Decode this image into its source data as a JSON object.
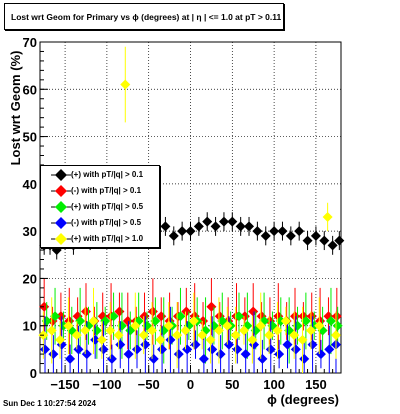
{
  "chart_data": {
    "type": "scatter",
    "title": "Lost wrt Geom for Primary vs ϕ (degrees) at | η | <= 1.0 at pT > 0.11",
    "xlabel": "ϕ (degrees)",
    "ylabel": "Lost wrt Geom (%)",
    "xlim": [
      -180,
      180
    ],
    "ylim": [
      0,
      70
    ],
    "xticks": [
      -150,
      -100,
      -50,
      0,
      50,
      100,
      150
    ],
    "yticks": [
      0,
      10,
      20,
      30,
      40,
      50,
      60,
      70
    ],
    "grid": true,
    "legend_placement": "middle-left",
    "series": [
      {
        "name": "(+) with pT/|q| > 0.1",
        "color": "#000000",
        "x": [
          -175,
          -168,
          -160,
          -150,
          -140,
          -130,
          -120,
          -110,
          -100,
          -90,
          -80,
          -70,
          -60,
          -50,
          -40,
          -30,
          -20,
          -10,
          0,
          10,
          20,
          30,
          40,
          50,
          60,
          70,
          80,
          90,
          100,
          110,
          120,
          130,
          140,
          150,
          160,
          170,
          178
        ],
        "y": [
          27,
          27,
          26,
          28,
          27,
          29,
          28,
          31,
          30,
          29,
          30,
          29,
          31,
          30,
          30,
          31,
          29,
          30,
          30,
          31,
          32,
          31,
          32,
          32,
          31,
          31,
          30,
          29,
          30,
          30,
          29,
          30,
          28,
          29,
          28,
          27,
          28
        ]
      },
      {
        "name": "(-) with pT/|q| > 0.1",
        "color": "#ff0000",
        "x": [
          -175,
          -165,
          -155,
          -145,
          -135,
          -125,
          -115,
          -105,
          -95,
          -85,
          -75,
          -65,
          -55,
          -45,
          -35,
          -25,
          -15,
          -5,
          5,
          15,
          25,
          35,
          45,
          55,
          65,
          75,
          85,
          95,
          105,
          115,
          125,
          135,
          145,
          155,
          165,
          175
        ],
        "y": [
          14,
          11,
          12,
          11,
          12,
          13,
          11,
          12,
          12,
          13,
          11,
          11,
          12,
          13,
          12,
          11,
          12,
          13,
          12,
          11,
          14,
          12,
          11,
          12,
          12,
          13,
          12,
          11,
          12,
          11,
          12,
          12,
          12,
          11,
          12,
          12
        ]
      },
      {
        "name": "(+) with pT/|q| > 0.5",
        "color": "#00ee00",
        "x": [
          -172,
          -162,
          -152,
          -142,
          -132,
          -122,
          -112,
          -102,
          -92,
          -82,
          -72,
          -62,
          -52,
          -42,
          -32,
          -22,
          -12,
          -2,
          8,
          18,
          28,
          38,
          48,
          58,
          68,
          78,
          88,
          98,
          108,
          118,
          128,
          138,
          148,
          158,
          168,
          176
        ],
        "y": [
          11,
          12,
          10,
          9,
          11,
          10,
          9,
          11,
          12,
          10,
          9,
          11,
          10,
          11,
          9,
          10,
          12,
          10,
          11,
          9,
          10,
          11,
          10,
          12,
          10,
          9,
          11,
          10,
          11,
          9,
          10,
          11,
          10,
          9,
          11,
          10
        ]
      },
      {
        "name": "(-) with pT/|q| > 0.5",
        "color": "#0000ff",
        "x": [
          -174,
          -164,
          -154,
          -144,
          -134,
          -124,
          -114,
          -104,
          -94,
          -84,
          -74,
          -64,
          -54,
          -44,
          -34,
          -24,
          -14,
          -4,
          6,
          16,
          26,
          36,
          46,
          56,
          66,
          76,
          86,
          96,
          106,
          116,
          126,
          136,
          146,
          156,
          166,
          174
        ],
        "y": [
          5,
          4,
          6,
          3,
          5,
          4,
          7,
          5,
          3,
          6,
          4,
          5,
          6,
          3,
          5,
          7,
          4,
          5,
          6,
          3,
          5,
          4,
          6,
          5,
          4,
          6,
          3,
          5,
          4,
          6,
          5,
          3,
          6,
          4,
          5,
          6
        ]
      },
      {
        "name": "(+) with pT/|q| > 1.0",
        "color": "#ffff00",
        "x": [
          -176,
          -166,
          -156,
          -146,
          -136,
          -126,
          -116,
          -106,
          -96,
          -86,
          -78,
          -66,
          -56,
          -46,
          -36,
          -26,
          -16,
          -6,
          4,
          14,
          24,
          34,
          44,
          54,
          64,
          74,
          84,
          94,
          104,
          114,
          124,
          134,
          144,
          154,
          164,
          174
        ],
        "y": [
          8,
          9,
          7,
          10,
          8,
          9,
          11,
          7,
          9,
          8,
          61,
          10,
          8,
          9,
          7,
          10,
          8,
          9,
          11,
          8,
          7,
          9,
          10,
          8,
          9,
          7,
          10,
          8,
          9,
          11,
          8,
          7,
          9,
          10,
          33,
          8
        ]
      }
    ]
  },
  "footer_timestamp": "Sun Dec  1 10:27:54 2024"
}
